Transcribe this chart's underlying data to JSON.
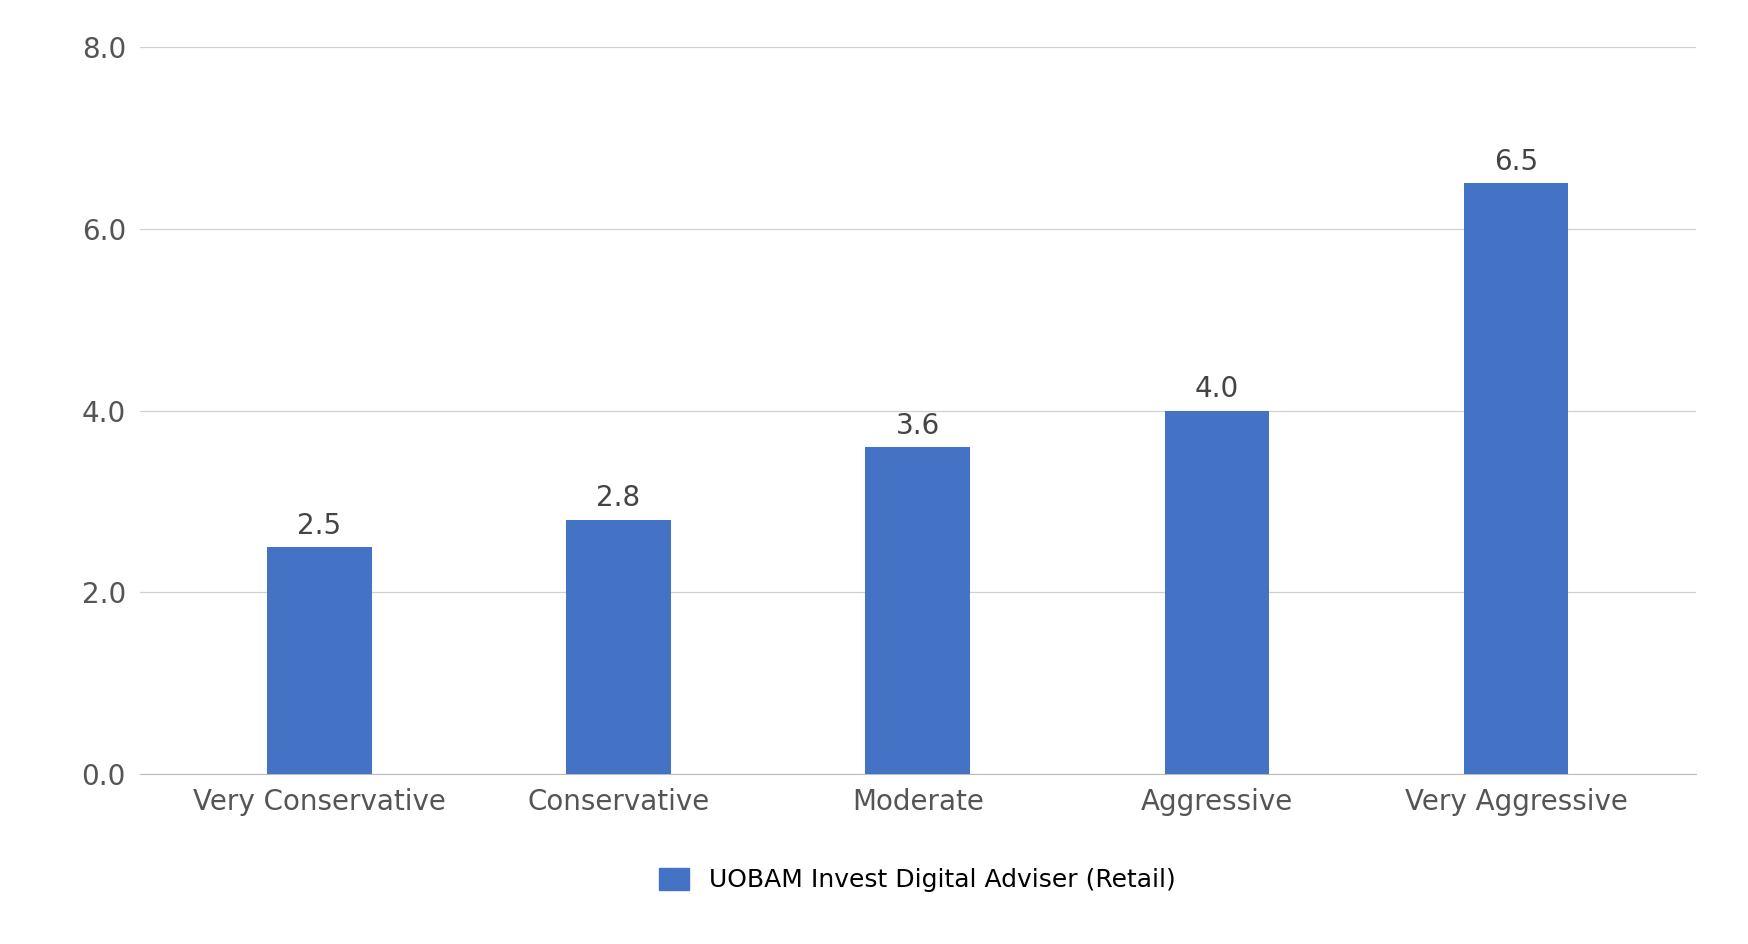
{
  "categories": [
    "Very Conservative",
    "Conservative",
    "Moderate",
    "Aggressive",
    "Very Aggressive"
  ],
  "values": [
    2.5,
    2.8,
    3.6,
    4.0,
    6.5
  ],
  "bar_color": "#4472C4",
  "ylim": [
    0,
    8.0
  ],
  "yticks": [
    0.0,
    2.0,
    4.0,
    6.0,
    8.0
  ],
  "ytick_labels": [
    "0.0",
    "2.0",
    "4.0",
    "6.0",
    "8.0"
  ],
  "legend_label": "UOBAM Invest Digital Adviser (Retail)",
  "background_color": "#ffffff",
  "grid_color": "#d0d0d0",
  "tick_fontsize": 20,
  "legend_fontsize": 18,
  "value_label_fontsize": 20,
  "bar_width": 0.35
}
